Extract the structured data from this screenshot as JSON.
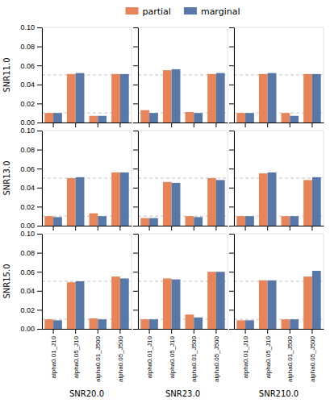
{
  "chart_data": [
    {
      "type": "bar",
      "y_label": "SNR11.0",
      "tick_labels": "y",
      "legend": "top",
      "categories": [
        "alpha0.01_J10",
        "alpha0.05_J10",
        "alpha0.01_J500",
        "alpha0.05_J500"
      ],
      "series": [
        {
          "name": "partial",
          "color": "#E8845A",
          "values": [
            0.01,
            0.051,
            0.007,
            0.051
          ]
        },
        {
          "name": "marginal",
          "color": "#5878A8",
          "values": [
            0.01,
            0.052,
            0.007,
            0.051
          ]
        }
      ],
      "hlines": [
        0.01,
        0.05
      ],
      "ylim": [
        0.0,
        0.1
      ],
      "yticks": [
        {
          "value": 0.0,
          "label": "0.00"
        },
        0.02,
        0.04,
        0.06,
        0.08,
        {
          "value": 0.1,
          "label": "0.10"
        }
      ]
    },
    {
      "type": "bar",
      "tick_labels": false,
      "categories": [
        "alpha0.01_J10",
        "alpha0.05_J10",
        "alpha0.01_J500",
        "alpha0.05_J500"
      ],
      "series": [
        {
          "name": "partial",
          "color": "#E8845A",
          "values": [
            0.013,
            0.055,
            0.011,
            0.051
          ]
        },
        {
          "name": "marginal",
          "color": "#5878A8",
          "values": [
            0.01,
            0.056,
            0.01,
            0.052
          ]
        }
      ],
      "hlines": [
        0.01,
        0.05
      ],
      "ylim": [
        0.0,
        0.1
      ],
      "yticks": [
        {
          "value": 0.0,
          "label": "0.00"
        },
        0.02,
        0.04,
        0.06,
        0.08,
        {
          "value": 0.1,
          "label": "0.10"
        }
      ]
    },
    {
      "type": "bar",
      "tick_labels": false,
      "categories": [
        "alpha0.01_J10",
        "alpha0.05_J10",
        "alpha0.01_J500",
        "alpha0.05_J500"
      ],
      "series": [
        {
          "name": "partial",
          "color": "#E8845A",
          "values": [
            0.01,
            0.051,
            0.01,
            0.051
          ]
        },
        {
          "name": "marginal",
          "color": "#5878A8",
          "values": [
            0.01,
            0.052,
            0.007,
            0.051
          ]
        }
      ],
      "hlines": [
        0.01,
        0.05
      ],
      "ylim": [
        0.0,
        0.1
      ],
      "yticks": [
        {
          "value": 0.0,
          "label": "0.00"
        },
        0.02,
        0.04,
        0.06,
        0.08,
        {
          "value": 0.1,
          "label": "0.10"
        }
      ]
    },
    {
      "type": "bar",
      "y_label": "SNR13.0",
      "tick_labels": "y",
      "categories": [
        "alpha0.01_J10",
        "alpha0.05_J10",
        "alpha0.01_J500",
        "alpha0.05_J500"
      ],
      "series": [
        {
          "name": "partial",
          "color": "#E8845A",
          "values": [
            0.01,
            0.05,
            0.013,
            0.056
          ]
        },
        {
          "name": "marginal",
          "color": "#5878A8",
          "values": [
            0.009,
            0.051,
            0.01,
            0.056
          ]
        }
      ],
      "hlines": [
        0.01,
        0.05
      ],
      "ylim": [
        0.0,
        0.1
      ],
      "yticks": [
        {
          "value": 0.0,
          "label": "0.00"
        },
        0.02,
        0.04,
        0.06,
        0.08,
        {
          "value": 0.1,
          "label": "0.10"
        }
      ]
    },
    {
      "type": "bar",
      "tick_labels": false,
      "categories": [
        "alpha0.01_J10",
        "alpha0.05_J10",
        "alpha0.01_J500",
        "alpha0.05_J500"
      ],
      "series": [
        {
          "name": "partial",
          "color": "#E8845A",
          "values": [
            0.008,
            0.046,
            0.01,
            0.05
          ]
        },
        {
          "name": "marginal",
          "color": "#5878A8",
          "values": [
            0.008,
            0.045,
            0.009,
            0.048
          ]
        }
      ],
      "hlines": [
        0.01,
        0.05
      ],
      "ylim": [
        0.0,
        0.1
      ],
      "yticks": [
        {
          "value": 0.0,
          "label": "0.00"
        },
        0.02,
        0.04,
        0.06,
        0.08,
        {
          "value": 0.1,
          "label": "0.10"
        }
      ]
    },
    {
      "type": "bar",
      "tick_labels": false,
      "categories": [
        "alpha0.01_J10",
        "alpha0.05_J10",
        "alpha0.01_J500",
        "alpha0.05_J500"
      ],
      "series": [
        {
          "name": "partial",
          "color": "#E8845A",
          "values": [
            0.01,
            0.055,
            0.01,
            0.048
          ]
        },
        {
          "name": "marginal",
          "color": "#5878A8",
          "values": [
            0.01,
            0.056,
            0.01,
            0.051
          ]
        }
      ],
      "hlines": [
        0.01,
        0.05
      ],
      "ylim": [
        0.0,
        0.1
      ],
      "yticks": [
        {
          "value": 0.0,
          "label": "0.00"
        },
        0.02,
        0.04,
        0.06,
        0.08,
        {
          "value": 0.1,
          "label": "0.10"
        }
      ]
    },
    {
      "type": "bar",
      "y_label": "SNR15.0",
      "x_label": "SNR20.0",
      "tick_labels": true,
      "categories": [
        "alpha0.01_J10",
        "alpha0.05_J10",
        "alpha0.01_J500",
        "alpha0.05_J500"
      ],
      "series": [
        {
          "name": "partial",
          "color": "#E8845A",
          "values": [
            0.01,
            0.049,
            0.011,
            0.055
          ]
        },
        {
          "name": "marginal",
          "color": "#5878A8",
          "values": [
            0.009,
            0.05,
            0.01,
            0.053
          ]
        }
      ],
      "hlines": [
        0.01,
        0.05
      ],
      "ylim": [
        0.0,
        0.1
      ],
      "yticks": [
        {
          "value": 0.0,
          "label": "0.00"
        },
        0.02,
        0.04,
        0.06,
        0.08,
        {
          "value": 0.1,
          "label": "0.10"
        }
      ]
    },
    {
      "type": "bar",
      "x_label": "SNR23.0",
      "tick_labels": "x",
      "categories": [
        "alpha0.01_J10",
        "alpha0.05_J10",
        "alpha0.01_J500",
        "alpha0.05_J500"
      ],
      "series": [
        {
          "name": "partial",
          "color": "#E8845A",
          "values": [
            0.01,
            0.053,
            0.015,
            0.06
          ]
        },
        {
          "name": "marginal",
          "color": "#5878A8",
          "values": [
            0.01,
            0.052,
            0.012,
            0.06
          ]
        }
      ],
      "hlines": [
        0.01,
        0.05
      ],
      "ylim": [
        0.0,
        0.1
      ],
      "yticks": [
        {
          "value": 0.0,
          "label": "0.00"
        },
        0.02,
        0.04,
        0.06,
        0.08,
        {
          "value": 0.1,
          "label": "0.10"
        }
      ]
    },
    {
      "type": "bar",
      "x_label": "SNR210.0",
      "tick_labels": "x",
      "categories": [
        "alpha0.01_J10",
        "alpha0.05_J10",
        "alpha0.01_J500",
        "alpha0.05_J500"
      ],
      "series": [
        {
          "name": "partial",
          "color": "#E8845A",
          "values": [
            0.009,
            0.051,
            0.01,
            0.055
          ]
        },
        {
          "name": "marginal",
          "color": "#5878A8",
          "values": [
            0.009,
            0.051,
            0.01,
            0.061
          ]
        }
      ],
      "hlines": [
        0.01,
        0.05
      ],
      "ylim": [
        0.0,
        0.1
      ],
      "yticks": [
        {
          "value": 0.0,
          "label": "0.00"
        },
        0.02,
        0.04,
        0.06,
        0.08,
        {
          "value": 0.1,
          "label": "0.10"
        }
      ]
    }
  ]
}
